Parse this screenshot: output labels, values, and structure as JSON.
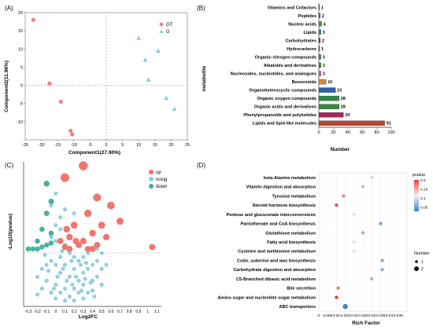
{
  "chart_data": [
    {
      "panel": "(A)",
      "type": "scatter",
      "xlabel": "Component1(27.90%)",
      "ylabel": "Component2(11.96%)",
      "xlim": [
        -25,
        25
      ],
      "ylim": [
        -15,
        20
      ],
      "xticks": [
        -25,
        -20,
        -15,
        -10,
        -5,
        0,
        5,
        10,
        15,
        20,
        25
      ],
      "yticks": [
        -10,
        -5,
        0,
        5,
        10,
        15,
        20
      ],
      "series": [
        {
          "name": "GT",
          "color": "#f08080",
          "points": [
            [
              -22.5,
              18
            ],
            [
              -17.5,
              0.5
            ],
            [
              -14,
              -4.5
            ],
            [
              -11,
              -12.5
            ],
            [
              -10.5,
              -13.5
            ]
          ]
        },
        {
          "name": "G",
          "color": "#87cee6",
          "points": [
            [
              10,
              13
            ],
            [
              12,
              7
            ],
            [
              13,
              1.5
            ],
            [
              16,
              9.5
            ],
            [
              18.5,
              -3.5
            ],
            [
              21,
              -6.5
            ]
          ]
        }
      ]
    },
    {
      "panel": "(B)",
      "type": "bar",
      "xlabel": "Number",
      "ylabel": "metabolite",
      "xlim": [
        0,
        100
      ],
      "xticks": [
        0,
        20,
        40,
        60,
        80,
        100
      ],
      "categories": [
        "Vitamins and Cofactors",
        "Peptides",
        "Nucleic acids",
        "Lipids",
        "Carbohydrates",
        "Hydrocarbons",
        "Organic nitrogen compounds",
        "Alkaloids and derivatives",
        "Nucleosides, nucleotides, and analogues",
        "Benzenoids",
        "Organoheterocyclic compounds",
        "Organic oxygen compounds",
        "Organic acids and derivatives",
        "Phenylpropanoids and polyketides",
        "Lipids and lipid-like molecules"
      ],
      "values": [
        1,
        2,
        4,
        3,
        2,
        1,
        3,
        3,
        3,
        10,
        23,
        28,
        28,
        34,
        91
      ],
      "colors": [
        "#2b5d8a",
        "#3b6da0",
        "#4d9a38",
        "#2f7fae",
        "#8b2a2a",
        "#3a3a7a",
        "#2f8a8a",
        "#3d8a2f",
        "#d6609a",
        "#d9823a",
        "#2f5fa8",
        "#2f8a4a",
        "#3a8a3a",
        "#a8265a",
        "#b8452f"
      ]
    },
    {
      "panel": "(C)",
      "type": "scatter",
      "xlabel": "Log2FC",
      "ylabel": "-Log10(pvalue)",
      "xlim": [
        -0.35,
        1.15
      ],
      "ylim": [
        -0.05,
        3.6
      ],
      "xticks": [
        -0.3,
        -0.2,
        -0.1,
        0,
        0.1,
        0.2,
        0.3,
        0.4,
        0.5,
        0.6,
        0.7,
        0.8,
        0.9,
        1,
        1.1
      ],
      "threshold_y": 1.3,
      "legend": [
        "up",
        "nosig",
        "down"
      ],
      "colors": {
        "up": "#ef6e63",
        "nosig": "#8fcbe0",
        "down": "#3fae98"
      },
      "series": [
        {
          "name": "up",
          "points": [
            [
              0.3,
              3.5
            ],
            [
              0.1,
              3.2
            ],
            [
              0.45,
              2.7
            ],
            [
              0.6,
              2.5
            ],
            [
              0.7,
              2.1
            ],
            [
              0.35,
              2.3
            ],
            [
              0.5,
              2.0
            ],
            [
              0.2,
              2.0
            ],
            [
              0.15,
              1.7
            ],
            [
              0.4,
              1.8
            ],
            [
              0.3,
              1.6
            ],
            [
              0.55,
              1.7
            ],
            [
              0.25,
              1.5
            ],
            [
              0.05,
              1.6
            ],
            [
              0.45,
              1.5
            ],
            [
              0.35,
              1.4
            ],
            [
              0.15,
              1.4
            ],
            [
              0.4,
              1.4
            ],
            [
              1.05,
              1.45
            ],
            [
              0.12,
              1.9
            ],
            [
              0.22,
              1.6
            ],
            [
              0.1,
              1.45
            ]
          ]
        },
        {
          "name": "down",
          "points": [
            [
              -0.1,
              3.05
            ],
            [
              -0.05,
              2.6
            ],
            [
              -0.1,
              2.3
            ],
            [
              -0.15,
              1.9
            ],
            [
              -0.05,
              1.8
            ],
            [
              -0.2,
              1.6
            ],
            [
              -0.25,
              1.4
            ],
            [
              -0.3,
              1.4
            ],
            [
              -0.1,
              1.5
            ],
            [
              -0.05,
              1.55
            ],
            [
              -0.15,
              1.45
            ],
            [
              -0.2,
              1.4
            ]
          ]
        },
        {
          "name": "nosig",
          "points": [
            [
              0,
              2.8
            ],
            [
              -0.05,
              2.5
            ],
            [
              0.05,
              2.2
            ],
            [
              0.1,
              2.4
            ],
            [
              0.2,
              2.3
            ],
            [
              0,
              2.0
            ],
            [
              0.05,
              1.9
            ],
            [
              -0.05,
              1.7
            ],
            [
              0,
              1.6
            ],
            [
              0.1,
              1.5
            ],
            [
              0.15,
              1.3
            ],
            [
              0.2,
              1.2
            ],
            [
              0.25,
              1.1
            ],
            [
              0.3,
              1.2
            ],
            [
              0.35,
              1.3
            ],
            [
              0.45,
              1.4
            ],
            [
              0.5,
              1.3
            ],
            [
              0.05,
              1.2
            ],
            [
              -0.05,
              1.1
            ],
            [
              -0.1,
              1.0
            ],
            [
              -0.15,
              0.9
            ],
            [
              -0.2,
              0.7
            ],
            [
              0,
              1.0
            ],
            [
              0.1,
              1.0
            ],
            [
              0.2,
              0.9
            ],
            [
              0.3,
              0.8
            ],
            [
              0.4,
              1.0
            ],
            [
              0.35,
              0.9
            ],
            [
              0.05,
              0.8
            ],
            [
              0.15,
              0.7
            ],
            [
              0.25,
              0.6
            ],
            [
              -0.1,
              0.6
            ],
            [
              0,
              0.5
            ],
            [
              0.1,
              0.4
            ],
            [
              0.2,
              0.4
            ],
            [
              0.3,
              0.5
            ],
            [
              0.4,
              0.6
            ],
            [
              0.45,
              0.7
            ],
            [
              -0.05,
              0.3
            ],
            [
              0.05,
              0.3
            ],
            [
              0.15,
              0.2
            ],
            [
              0.25,
              0.3
            ],
            [
              0.35,
              0.3
            ],
            [
              0,
              0.15
            ],
            [
              0.1,
              0.1
            ],
            [
              0.2,
              0.1
            ],
            [
              0.3,
              0.15
            ],
            [
              -0.15,
              0.4
            ],
            [
              -0.2,
              0.25
            ],
            [
              0.5,
              0.9
            ],
            [
              0.55,
              1.0
            ],
            [
              0.45,
              1.1
            ],
            [
              0.4,
              0.35
            ],
            [
              0.12,
              0.6
            ],
            [
              0.22,
              0.7
            ],
            [
              0.28,
              0.35
            ],
            [
              0.38,
              0.55
            ],
            [
              0.08,
              0.9
            ],
            [
              -0.08,
              0.85
            ],
            [
              0.18,
              0.5
            ],
            [
              0.32,
              0.65
            ],
            [
              0.42,
              0.2
            ],
            [
              -0.02,
              0.4
            ],
            [
              0.02,
              0.7
            ],
            [
              0.27,
              1.0
            ],
            [
              0.17,
              1.1
            ],
            [
              0.07,
              1.35
            ],
            [
              -0.12,
              1.25
            ],
            [
              0.33,
              1.05
            ],
            [
              0.5,
              0.5
            ]
          ]
        }
      ]
    },
    {
      "panel": "(D)",
      "type": "scatter",
      "xlabel": "Rich Factor",
      "xlim": [
        0,
        0.05
      ],
      "xticks": [
        "0",
        "0.005",
        "0.01",
        "0.015",
        "0.02",
        "0.025",
        "0.03",
        "0.035",
        "0.04",
        "0.045"
      ],
      "categories": [
        "beta-Alanine metabolism",
        "Vitamin digestion and absorption",
        "Tyrosine metabolism",
        "Steroid hormone biosynthesis",
        "Pentose and glucuronate interconversions",
        "Pantothenate and CoA biosynthesis",
        "Glutathione metabolism",
        "Fatty acid biosynthesis",
        "Cysteine and methionine metabolism",
        "Cutin, suberine and wax biosynthesis",
        "Carbohydrate digestion and absorption",
        "C5-Branched dibasic acid metabolism",
        "Bile secretion",
        "Amino sugar and nucleotide sugar metabolism",
        "ABC transporters"
      ],
      "rich_factor": [
        0.03,
        0.025,
        0.014,
        0.01,
        0.02,
        0.035,
        0.025,
        0.02,
        0.02,
        0.036,
        0.036,
        0.03,
        0.011,
        0.01,
        0.015
      ],
      "pvalue": [
        0.1,
        0.08,
        0.17,
        0.2,
        0.12,
        0.05,
        0.07,
        0.11,
        0.12,
        0.06,
        0.06,
        0.07,
        0.18,
        0.21,
        0.02
      ],
      "number": [
        1,
        1,
        1,
        1,
        1,
        1,
        1,
        1,
        1,
        1,
        1,
        1,
        1,
        1,
        2
      ],
      "legend_pvalue_title": "pvalue",
      "legend_pvalue_ticks": [
        "0.2",
        "0.15",
        "0.1",
        "0.05"
      ],
      "legend_number_title": "Number",
      "legend_number_values": [
        "1",
        "2"
      ]
    }
  ]
}
